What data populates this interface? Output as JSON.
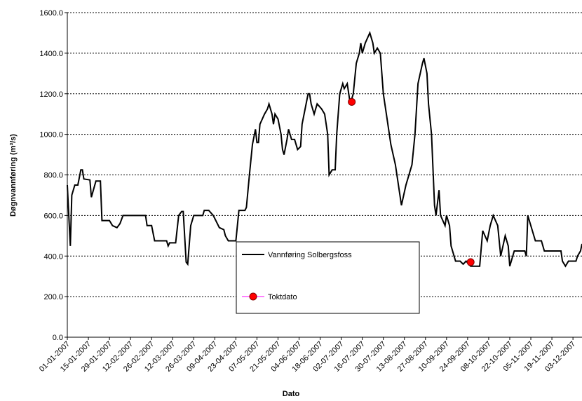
{
  "chart_data": {
    "type": "line",
    "xlabel": "Dato",
    "ylabel": "Døgnvannføring (m³/s)",
    "xlim": [
      "01-01-2007",
      "09-12-2007"
    ],
    "xticks": [
      "01-01-2007",
      "15-01-2007",
      "29-01-2007",
      "12-02-2007",
      "26-02-2007",
      "12-03-2007",
      "26-03-2007",
      "09-04-2007",
      "23-04-2007",
      "07-05-2007",
      "21-05-2007",
      "04-06-2007",
      "18-06-2007",
      "02-07-2007",
      "16-07-2007",
      "30-07-2007",
      "13-08-2007",
      "27-08-2007",
      "10-09-2007",
      "24-09-2007",
      "08-10-2007",
      "22-10-2007",
      "05-11-2007",
      "19-11-2007",
      "03-12-2007"
    ],
    "ylim": [
      0,
      1600
    ],
    "yticks": [
      {
        "value": 0,
        "label": "0.0"
      },
      {
        "value": 200,
        "label": "200.0"
      },
      {
        "value": 400,
        "label": "400.0"
      },
      {
        "value": 600,
        "label": "600.0"
      },
      {
        "value": 800,
        "label": "800.0"
      },
      {
        "value": 1000,
        "label": "1000.0"
      },
      {
        "value": 1200,
        "label": "1200.0"
      },
      {
        "value": 1400,
        "label": "1400.0"
      },
      {
        "value": 1600,
        "label": "1600.0"
      }
    ],
    "grid": true,
    "series": [
      {
        "name": "Vannføring Solbergsfoss",
        "color": "#000000",
        "x": [
          "01-01-2007",
          "02-01-2007",
          "03-01-2007",
          "04-01-2007",
          "06-01-2007",
          "08-01-2007",
          "10-01-2007",
          "11-01-2007",
          "12-01-2007",
          "16-01-2007",
          "17-01-2007",
          "20-01-2007",
          "23-01-2007",
          "24-01-2007",
          "29-01-2007",
          "31-01-2007",
          "03-02-2007",
          "05-02-2007",
          "07-02-2007",
          "22-02-2007",
          "23-02-2007",
          "26-02-2007",
          "28-02-2007",
          "08-03-2007",
          "09-03-2007",
          "10-03-2007",
          "14-03-2007",
          "16-03-2007",
          "18-03-2007",
          "19-03-2007",
          "21-03-2007",
          "22-03-2007",
          "24-03-2007",
          "26-03-2007",
          "01-04-2007",
          "02-04-2007",
          "05-04-2007",
          "08-04-2007",
          "10-04-2007",
          "12-04-2007",
          "15-04-2007",
          "16-04-2007",
          "18-04-2007",
          "23-04-2007",
          "25-04-2007",
          "29-04-2007",
          "30-04-2007",
          "02-05-2007",
          "04-05-2007",
          "06-05-2007",
          "07-05-2007",
          "08-05-2007",
          "09-05-2007",
          "12-05-2007",
          "14-05-2007",
          "15-05-2007",
          "17-05-2007",
          "18-05-2007",
          "19-05-2007",
          "21-05-2007",
          "23-05-2007",
          "24-05-2007",
          "25-05-2007",
          "27-05-2007",
          "28-05-2007",
          "30-05-2007",
          "01-06-2007",
          "03-06-2007",
          "05-06-2007",
          "06-06-2007",
          "08-06-2007",
          "10-06-2007",
          "11-06-2007",
          "12-06-2007",
          "14-06-2007",
          "16-06-2007",
          "19-06-2007",
          "21-06-2007",
          "23-06-2007",
          "24-06-2007",
          "26-06-2007",
          "28-06-2007",
          "29-06-2007",
          "01-07-2007",
          "03-07-2007",
          "04-07-2007",
          "06-07-2007",
          "08-07-2007",
          "10-07-2007",
          "12-07-2007",
          "14-07-2007",
          "15-07-2007",
          "16-07-2007",
          "18-07-2007",
          "21-07-2007",
          "23-07-2007",
          "24-07-2007",
          "26-07-2007",
          "28-07-2007",
          "30-07-2007",
          "01-08-2007",
          "04-08-2007",
          "07-08-2007",
          "11-08-2007",
          "14-08-2007",
          "18-08-2007",
          "20-08-2007",
          "22-08-2007",
          "25-08-2007",
          "26-08-2007",
          "28-08-2007",
          "29-08-2007",
          "31-08-2007",
          "02-09-2007",
          "03-09-2007",
          "05-09-2007",
          "06-09-2007",
          "09-09-2007",
          "10-09-2007",
          "12-09-2007",
          "13-09-2007",
          "16-09-2007",
          "19-09-2007",
          "21-09-2007",
          "23-09-2007",
          "26-09-2007",
          "02-10-2007",
          "04-10-2007",
          "07-10-2007",
          "09-10-2007",
          "11-10-2007",
          "14-10-2007",
          "16-10-2007",
          "19-10-2007",
          "21-10-2007",
          "22-10-2007",
          "25-10-2007",
          "01-11-2007",
          "02-11-2007",
          "03-11-2007",
          "06-11-2007",
          "08-11-2007",
          "12-11-2007",
          "14-11-2007",
          "25-11-2007",
          "26-11-2007",
          "28-11-2007",
          "30-11-2007",
          "05-12-2007",
          "06-12-2007",
          "08-12-2007",
          "09-12-2007"
        ],
        "values": [
          750,
          600,
          450,
          700,
          750,
          750,
          825,
          825,
          780,
          775,
          690,
          770,
          770,
          575,
          575,
          550,
          540,
          560,
          600,
          600,
          550,
          550,
          475,
          475,
          450,
          465,
          465,
          600,
          620,
          620,
          370,
          360,
          550,
          600,
          600,
          625,
          625,
          600,
          570,
          540,
          530,
          500,
          475,
          475,
          625,
          625,
          640,
          800,
          950,
          1025,
          960,
          960,
          1050,
          1100,
          1125,
          1150,
          1100,
          1050,
          1100,
          1075,
          1000,
          925,
          900,
          975,
          1025,
          975,
          975,
          925,
          940,
          1050,
          1125,
          1200,
          1200,
          1150,
          1100,
          1150,
          1125,
          1100,
          1000,
          800,
          825,
          825,
          1000,
          1200,
          1250,
          1225,
          1250,
          1150,
          1200,
          1350,
          1400,
          1450,
          1400,
          1450,
          1500,
          1450,
          1400,
          1425,
          1400,
          1200,
          1100,
          950,
          850,
          650,
          750,
          850,
          1000,
          1250,
          1350,
          1375,
          1300,
          1150,
          1000,
          650,
          600,
          725,
          600,
          550,
          600,
          550,
          450,
          375,
          375,
          360,
          375,
          350,
          350,
          525,
          475,
          550,
          600,
          550,
          400,
          500,
          450,
          350,
          425,
          425,
          400,
          600,
          525,
          475,
          475,
          425,
          425,
          375,
          350,
          375,
          375,
          400,
          425,
          460
        ]
      },
      {
        "name": "Toktdato",
        "color": "#ff0000",
        "x": [
          "09-07-2007",
          "26-09-2007"
        ],
        "values": [
          1160,
          370
        ]
      }
    ]
  }
}
